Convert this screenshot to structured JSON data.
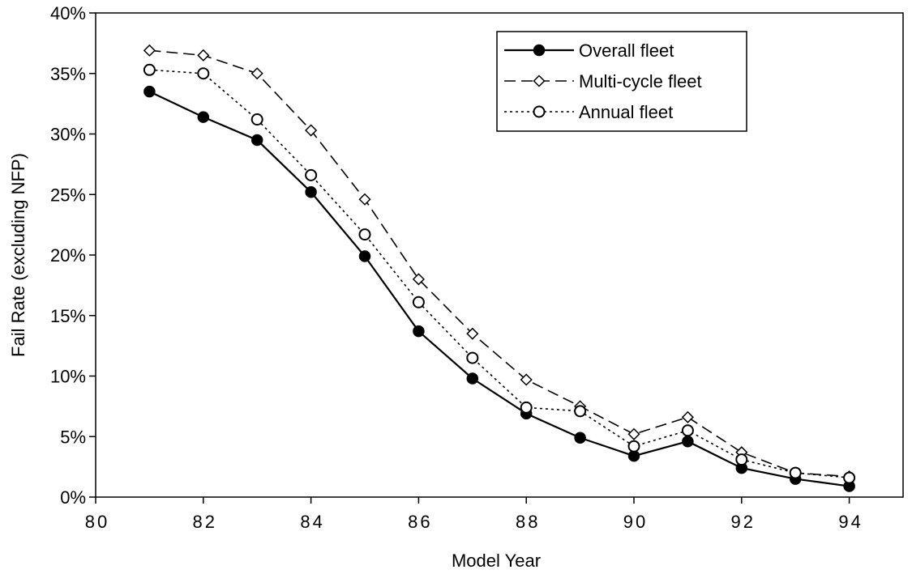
{
  "chart_data": {
    "type": "line",
    "xlabel": "Model Year",
    "ylabel": "Fail Rate (excluding NFP)",
    "x": [
      81,
      82,
      83,
      84,
      85,
      86,
      87,
      88,
      89,
      90,
      91,
      92,
      93,
      94
    ],
    "xlim": [
      80,
      95
    ],
    "ylim": [
      0,
      40
    ],
    "y_unit": "%",
    "x_ticks": [
      80,
      82,
      84,
      86,
      88,
      90,
      92,
      94
    ],
    "y_ticks": [
      0,
      5,
      10,
      15,
      20,
      25,
      30,
      35,
      40
    ],
    "x_tick_labels": [
      "80",
      "82",
      "84",
      "86",
      "88",
      "90",
      "92",
      "94"
    ],
    "y_tick_labels": [
      "0%",
      "5%",
      "10%",
      "15%",
      "20%",
      "25%",
      "30%",
      "35%",
      "40%"
    ],
    "grid": false,
    "legend_position": "top-right",
    "series": [
      {
        "name": "Overall fleet",
        "line_style": "solid",
        "marker": "filled-circle",
        "color": "#000000",
        "values": [
          33.5,
          31.4,
          29.5,
          25.2,
          19.9,
          13.7,
          9.8,
          6.9,
          4.9,
          3.4,
          4.6,
          2.4,
          1.5,
          0.9
        ]
      },
      {
        "name": "Multi-cycle fleet",
        "line_style": "dashed",
        "marker": "open-diamond",
        "color": "#000000",
        "values": [
          36.9,
          36.5,
          35.0,
          30.3,
          24.6,
          18.0,
          13.5,
          9.7,
          7.5,
          5.2,
          6.6,
          3.7,
          2.0,
          1.7
        ]
      },
      {
        "name": "Annual fleet",
        "line_style": "dotted",
        "marker": "open-circle",
        "color": "#000000",
        "values": [
          35.3,
          35.0,
          31.2,
          26.6,
          21.7,
          16.1,
          11.5,
          7.4,
          7.1,
          4.2,
          5.5,
          3.1,
          2.0,
          1.6
        ]
      }
    ]
  }
}
